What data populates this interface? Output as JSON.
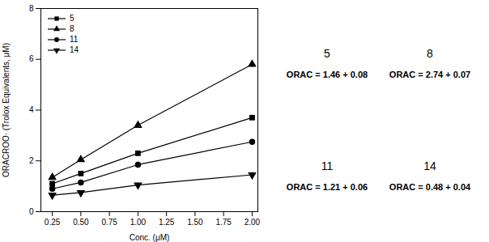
{
  "chart_data": {
    "type": "line",
    "x": [
      0.25,
      0.5,
      1.0,
      2.0
    ],
    "series": [
      {
        "name": "5",
        "color": "#000000",
        "marker": "square",
        "values": [
          1.1,
          1.5,
          2.3,
          3.7
        ],
        "errors": [
          0.08,
          0.07,
          0.09,
          0.1
        ]
      },
      {
        "name": "8",
        "color": "#000000",
        "marker": "triangle",
        "values": [
          1.35,
          2.05,
          3.4,
          5.8
        ],
        "errors": [
          0.08,
          0.1,
          0.12,
          0.12
        ]
      },
      {
        "name": "11",
        "color": "#000000",
        "marker": "circle",
        "values": [
          0.9,
          1.15,
          1.85,
          2.75
        ],
        "errors": [
          0.07,
          0.08,
          0.1,
          0.1
        ]
      },
      {
        "name": "14",
        "color": "#000000",
        "marker": "triangle-down",
        "values": [
          0.65,
          0.75,
          1.05,
          1.45
        ],
        "errors": [
          0.05,
          0.06,
          0.08,
          0.09
        ]
      }
    ],
    "xlabel": "Conc. (μM)",
    "ylabel": "ORACROO· (Trolox Equivalents, μM)",
    "xlim": [
      0.15,
      2.05
    ],
    "ylim": [
      0,
      8
    ],
    "xticks": [
      {
        "value": 0.25,
        "label": "0.25"
      },
      {
        "value": 0.5,
        "label": "0.50"
      },
      {
        "value": 0.75,
        "label": "0.75"
      },
      {
        "value": 1.0,
        "label": "1.00"
      },
      {
        "value": 1.25,
        "label": "1.25"
      },
      {
        "value": 1.5,
        "label": "1.50"
      },
      {
        "value": 1.75,
        "label": "1.75"
      },
      {
        "value": 2.0,
        "label": "2.00"
      }
    ],
    "yticks": [
      0,
      2,
      4,
      6,
      8
    ],
    "legend": "upper left",
    "annotations": [
      {
        "label": "5",
        "text": "ORAC = 1.46 + 0.08"
      },
      {
        "label": "8",
        "text": "ORAC = 2.74 + 0.07"
      },
      {
        "label": "11",
        "text": "ORAC = 1.21 + 0.06"
      },
      {
        "label": "14",
        "text": "ORAC = 0.48 + 0.04"
      }
    ]
  }
}
